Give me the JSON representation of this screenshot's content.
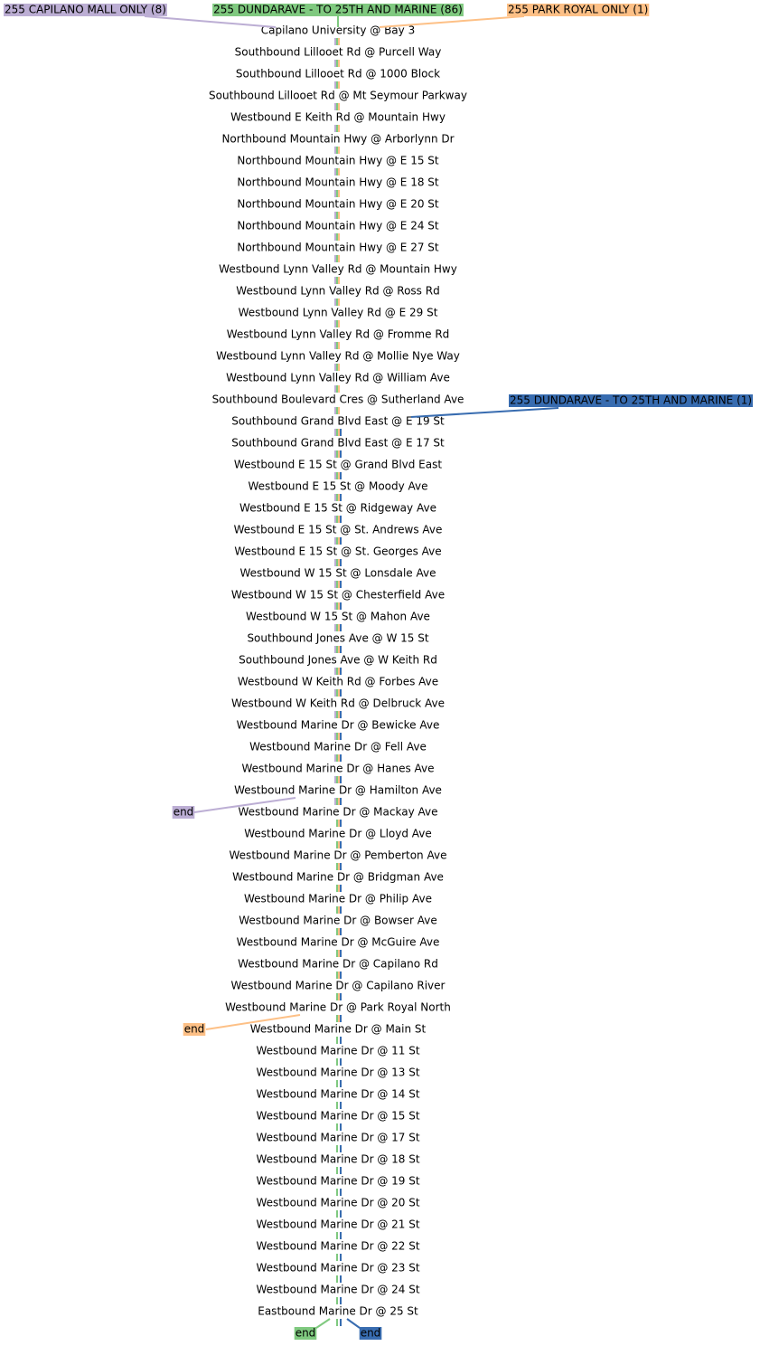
{
  "variants": [
    {
      "label": "255 CAPILANO MALL ONLY (8)",
      "color": "#bcaed4",
      "end": "end"
    },
    {
      "label": "255 DUNDARAVE - TO 25TH AND MARINE (86)",
      "color": "#7fc97f",
      "end": "end"
    },
    {
      "label": "255 PARK ROYAL ONLY (1)",
      "color": "#fdc086",
      "end": "end"
    },
    {
      "label": "255 DUNDARAVE - TO 25TH AND MARINE (1)",
      "color": "#386cb0",
      "end": "end"
    }
  ],
  "stops": [
    "Capilano University @ Bay 3",
    "Southbound Lillooet Rd @ Purcell Way",
    "Southbound Lillooet Rd @ 1000 Block",
    "Southbound Lillooet Rd @ Mt Seymour Parkway",
    "Westbound E Keith Rd @ Mountain Hwy",
    "Northbound Mountain Hwy @ Arborlynn Dr",
    "Northbound Mountain Hwy @ E 15 St",
    "Northbound Mountain Hwy @ E 18 St",
    "Northbound Mountain Hwy @ E 20 St",
    "Northbound Mountain Hwy @ E 24 St",
    "Northbound Mountain Hwy @ E 27 St",
    "Westbound Lynn Valley Rd @ Mountain Hwy",
    "Westbound Lynn Valley Rd @ Ross Rd",
    "Westbound Lynn Valley Rd @ E 29 St",
    "Westbound Lynn Valley Rd @ Fromme Rd",
    "Westbound Lynn Valley Rd @ Mollie Nye Way",
    "Westbound Lynn Valley Rd @ William Ave",
    "Southbound Boulevard Cres @ Sutherland Ave",
    "Southbound Grand Blvd East @ E 19 St",
    "Southbound Grand Blvd East @ E 17 St",
    "Westbound E 15 St @ Grand Blvd East",
    "Westbound E 15 St @ Moody Ave",
    "Westbound E 15 St @ Ridgeway Ave",
    "Westbound E 15 St @ St. Andrews Ave",
    "Westbound E 15 St @ St. Georges Ave",
    "Westbound W 15 St @ Lonsdale Ave",
    "Westbound W 15 St @ Chesterfield Ave",
    "Westbound W 15 St @ Mahon Ave",
    "Southbound Jones Ave @ W 15 St",
    "Southbound Jones Ave @ W Keith Rd",
    "Westbound W Keith Rd @ Forbes Ave",
    "Westbound W Keith Rd @ Delbruck Ave",
    "Westbound Marine Dr @ Bewicke Ave",
    "Westbound Marine Dr @ Fell Ave",
    "Westbound Marine Dr @ Hanes Ave",
    "Westbound Marine Dr @ Hamilton Ave",
    "Westbound Marine Dr @ Mackay Ave",
    "Westbound Marine Dr @ Lloyd Ave",
    "Westbound Marine Dr @ Pemberton Ave",
    "Westbound Marine Dr @ Bridgman Ave",
    "Westbound Marine Dr @ Philip Ave",
    "Westbound Marine Dr @ Bowser Ave",
    "Westbound Marine Dr @ McGuire Ave",
    "Westbound Marine Dr @ Capilano Rd",
    "Westbound Marine Dr @ Capilano River",
    "Westbound Marine Dr @ Park Royal North",
    "Westbound Marine Dr @ Main St",
    "Westbound Marine Dr @ 11 St",
    "Westbound Marine Dr @ 13 St",
    "Westbound Marine Dr @ 14 St",
    "Westbound Marine Dr @ 15 St",
    "Westbound Marine Dr @ 17 St",
    "Westbound Marine Dr @ 18 St",
    "Westbound Marine Dr @ 19 St",
    "Westbound Marine Dr @ 20 St",
    "Westbound Marine Dr @ 21 St",
    "Westbound Marine Dr @ 22 St",
    "Westbound Marine Dr @ 23 St",
    "Westbound Marine Dr @ 24 St",
    "Eastbound Marine Dr @ 25 St"
  ]
}
